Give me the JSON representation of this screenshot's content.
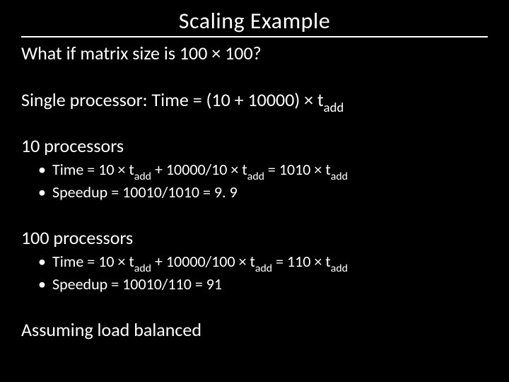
{
  "colors": {
    "background": "#000000",
    "text": "#ffffff",
    "rule": "#ffffff"
  },
  "title": "Scaling Example",
  "question": "What if matrix size is 100 × 100?",
  "single": {
    "prefix": "Single processor: Time = (10 + 10000) × t",
    "sub": "add"
  },
  "ten": {
    "heading": "10 processors",
    "time": {
      "p1": "Time = 10 × t",
      "s1": "add",
      "p2": " + 10000/10 × t",
      "s2": "add",
      "p3": " = 1010 × t",
      "s3": "add"
    },
    "speedup": "Speedup = 10010/1010 = 9. 9"
  },
  "hundred": {
    "heading": "100 processors",
    "time": {
      "p1": "Time = 10 × t",
      "s1": "add",
      "p2": " + 10000/100 × t",
      "s2": "add",
      "p3": " = 110 × t",
      "s3": "add"
    },
    "speedup": "Speedup = 10010/110 = 91"
  },
  "footer": "Assuming load balanced"
}
